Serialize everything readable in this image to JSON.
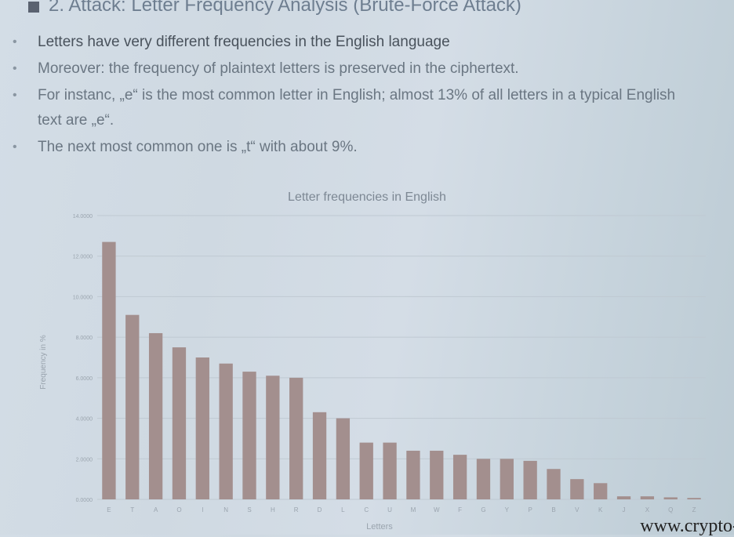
{
  "slide": {
    "title": "2. Attack: Letter Frequency Analysis (Brute-Force Attack)",
    "bullets": [
      "Letters have very different frequencies in the English language",
      "Moreover: the frequency of plaintext letters is preserved in the ciphertext.",
      "For instanc, „e“ is the most common letter in English; almost 13% of all letters in a typical English text are „e“.",
      "The next most common one is „t“ with about 9%."
    ],
    "watermark": "www.crypto-"
  },
  "colors": {
    "bar": "#a38f8e",
    "grid": "#bfc9d2",
    "axis_text": "#9aa4ae",
    "title": "#7d8894"
  },
  "chart_data": {
    "type": "bar",
    "title": "Letter frequencies in English",
    "xlabel": "Letters",
    "ylabel": "Frequency in %",
    "ylim": [
      0,
      14
    ],
    "yticks": [
      "0.0000",
      "2.0000",
      "4.0000",
      "6.0000",
      "8.0000",
      "10.0000",
      "12.0000",
      "14.0000"
    ],
    "grid": true,
    "categories": [
      "E",
      "T",
      "A",
      "O",
      "I",
      "N",
      "S",
      "H",
      "R",
      "D",
      "L",
      "C",
      "U",
      "M",
      "W",
      "F",
      "G",
      "Y",
      "P",
      "B",
      "V",
      "K",
      "J",
      "X",
      "Q",
      "Z"
    ],
    "values": [
      12.7,
      9.1,
      8.2,
      7.5,
      7.0,
      6.7,
      6.3,
      6.1,
      6.0,
      4.3,
      4.0,
      2.8,
      2.8,
      2.4,
      2.4,
      2.2,
      2.0,
      2.0,
      1.9,
      1.5,
      1.0,
      0.8,
      0.15,
      0.15,
      0.1,
      0.07
    ]
  }
}
